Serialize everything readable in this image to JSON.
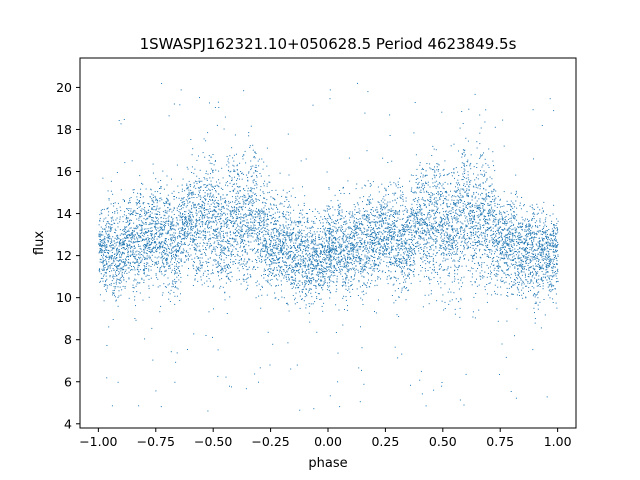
{
  "chart_data": {
    "type": "scatter",
    "title": "1SWASPJ162321.10+050628.5 Period 4623849.5s",
    "xlabel": "phase",
    "ylabel": "flux",
    "xlim": [
      -1.08,
      1.08
    ],
    "ylim": [
      3.8,
      21.4
    ],
    "xticks": [
      -1.0,
      -0.75,
      -0.5,
      -0.25,
      0.0,
      0.25,
      0.5,
      0.75,
      1.0
    ],
    "xtick_labels": [
      "−1.00",
      "−0.75",
      "−0.50",
      "−0.25",
      "0.00",
      "0.25",
      "0.50",
      "0.75",
      "1.00"
    ],
    "yticks": [
      4,
      6,
      8,
      10,
      12,
      14,
      16,
      18,
      20
    ],
    "ytick_labels": [
      "4",
      "6",
      "8",
      "10",
      "12",
      "14",
      "16",
      "18",
      "20"
    ],
    "grid": false,
    "point_color": "#1f77b4",
    "series": [
      {
        "note_description_free": true,
        "x": [
          -1.0,
          -0.99,
          -0.98,
          -0.97,
          -0.96,
          -0.95,
          -0.94,
          -0.93,
          -0.92,
          -0.91,
          -0.9,
          -0.89,
          -0.88,
          -0.87,
          -0.86,
          -0.85,
          -0.84,
          -0.83,
          -0.82,
          -0.81,
          -0.8,
          -0.79,
          -0.78,
          -0.77,
          -0.76,
          -0.75,
          -0.74,
          -0.73,
          -0.72,
          -0.71,
          -0.7,
          -0.69,
          -0.68,
          -0.67,
          -0.66,
          -0.65,
          -0.64,
          -0.63,
          -0.62,
          -0.61,
          -0.6,
          -0.59,
          -0.58,
          -0.57,
          -0.56,
          -0.55,
          -0.54,
          -0.53,
          -0.52,
          -0.51,
          -0.5,
          -0.49,
          -0.48,
          -0.47,
          -0.46,
          -0.45,
          -0.44,
          -0.43,
          -0.42,
          -0.41,
          -0.4,
          -0.39,
          -0.38,
          -0.37,
          -0.36,
          -0.35,
          -0.34,
          -0.33,
          -0.32,
          -0.31,
          -0.3,
          -0.29,
          -0.28,
          -0.27,
          -0.26,
          -0.25,
          -0.24,
          -0.23,
          -0.22,
          -0.21,
          -0.2,
          -0.19,
          -0.18,
          -0.17,
          -0.16,
          -0.15,
          -0.14,
          -0.13,
          -0.12,
          -0.11,
          -0.1,
          -0.09,
          -0.08,
          -0.07,
          -0.06,
          -0.05,
          -0.04,
          -0.03,
          -0.02,
          -0.01,
          0.0
        ],
        "y_center": [
          12.4,
          12.2,
          12.1,
          12.3,
          12.6,
          12.5,
          12.2,
          12.0,
          11.9,
          12.2,
          12.4,
          12.6,
          12.8,
          12.7,
          12.5,
          12.3,
          12.6,
          12.9,
          13.1,
          12.9,
          12.8,
          13.0,
          13.2,
          13.4,
          13.3,
          13.1,
          12.9,
          12.7,
          12.6,
          12.8,
          12.9,
          12.7,
          12.5,
          12.4,
          12.6,
          12.9,
          13.2,
          13.4,
          13.6,
          13.8,
          13.9,
          13.7,
          13.5,
          13.3,
          13.5,
          13.8,
          14.0,
          13.9,
          13.7,
          13.6,
          13.5,
          13.4,
          13.3,
          13.1,
          13.0,
          13.2,
          13.4,
          13.5,
          13.7,
          13.9,
          14.0,
          13.8,
          13.6,
          13.4,
          13.5,
          13.7,
          13.9,
          14.0,
          13.8,
          13.6,
          13.4,
          13.3,
          13.1,
          12.9,
          12.8,
          12.7,
          12.6,
          12.5,
          12.4,
          12.6,
          12.7,
          12.5,
          12.3,
          12.2,
          12.1,
          12.0,
          12.2,
          12.4,
          12.3,
          12.1,
          11.9,
          11.8,
          11.9,
          12.1,
          12.2,
          12.0,
          11.9,
          12.0,
          12.2,
          12.3,
          12.2
        ],
        "y_spread": [
          1.6,
          1.7,
          1.8,
          1.9,
          2.0,
          2.1,
          2.2,
          2.1,
          2.0,
          1.9,
          1.8,
          1.7,
          1.8,
          1.9,
          2.0,
          2.1,
          2.2,
          2.3,
          2.2,
          2.1,
          2.0,
          1.9,
          1.8,
          1.9,
          2.0,
          2.1,
          2.2,
          2.3,
          2.4,
          2.5,
          2.4,
          2.3,
          2.2,
          2.1,
          2.0,
          1.9,
          1.8,
          1.9,
          2.0,
          2.1,
          2.2,
          2.3,
          2.4,
          2.5,
          2.6,
          2.7,
          2.8,
          2.9,
          2.8,
          2.7,
          2.6,
          2.5,
          2.6,
          2.7,
          2.8,
          2.9,
          3.0,
          2.9,
          2.8,
          2.7,
          2.6,
          2.5,
          2.6,
          2.7,
          2.8,
          2.9,
          3.0,
          2.9,
          2.8,
          2.7,
          2.6,
          2.5,
          2.4,
          2.3,
          2.2,
          2.1,
          2.0,
          1.9,
          1.8,
          1.9,
          2.0,
          2.1,
          2.2,
          2.1,
          2.0,
          1.9,
          1.8,
          1.9,
          2.0,
          2.1,
          2.2,
          2.1,
          2.0,
          1.9,
          1.8,
          1.7,
          1.8,
          1.9,
          2.0,
          1.9,
          1.8
        ]
      }
    ]
  }
}
